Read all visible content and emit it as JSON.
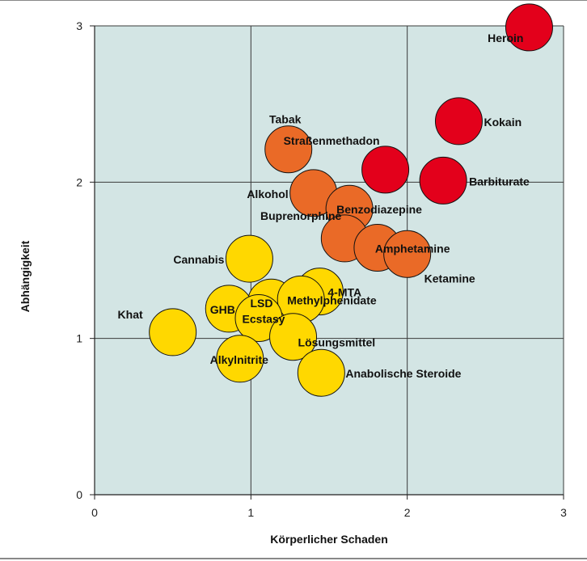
{
  "chart_data": {
    "type": "scatter",
    "title": "",
    "xlabel": "Körperlicher Schaden",
    "ylabel": "Abhängigkeit",
    "xlim": [
      0,
      3
    ],
    "ylim": [
      0,
      3
    ],
    "xticks": [
      "0",
      "1",
      "2",
      "3"
    ],
    "yticks": [
      "0",
      "1",
      "2",
      "3"
    ],
    "grid": true,
    "colors": {
      "plot_bg": "#d3e5e4",
      "red": "#e3001b",
      "orange": "#ea6a27",
      "yellow": "#ffd800",
      "grid": "#3a3a3a"
    },
    "points": [
      {
        "label": "Heroin",
        "x": 2.78,
        "y": 2.99,
        "group": "red"
      },
      {
        "label": "Kokain",
        "x": 2.33,
        "y": 2.39,
        "group": "red"
      },
      {
        "label": "Straßenmethadon",
        "x": 1.86,
        "y": 2.08,
        "group": "red"
      },
      {
        "label": "Barbiturate",
        "x": 2.23,
        "y": 2.01,
        "group": "red"
      },
      {
        "label": "Tabak",
        "x": 1.24,
        "y": 2.21,
        "group": "orange"
      },
      {
        "label": "Alkohol",
        "x": 1.4,
        "y": 1.93,
        "group": "orange"
      },
      {
        "label": "Benzodiazepine",
        "x": 1.63,
        "y": 1.83,
        "group": "orange"
      },
      {
        "label": "Buprenorphine",
        "x": 1.6,
        "y": 1.64,
        "group": "orange"
      },
      {
        "label": "Amphetamine",
        "x": 1.81,
        "y": 1.58,
        "group": "orange"
      },
      {
        "label": "Ketamine",
        "x": 2.0,
        "y": 1.54,
        "group": "orange"
      },
      {
        "label": "Cannabis",
        "x": 0.99,
        "y": 1.51,
        "group": "yellow"
      },
      {
        "label": "4-MTA",
        "x": 1.44,
        "y": 1.3,
        "group": "yellow"
      },
      {
        "label": "LSD",
        "x": 1.13,
        "y": 1.23,
        "group": "yellow"
      },
      {
        "label": "Methylphenidate",
        "x": 1.32,
        "y": 1.25,
        "group": "yellow"
      },
      {
        "label": "GHB",
        "x": 0.86,
        "y": 1.19,
        "group": "yellow"
      },
      {
        "label": "Ecstasy",
        "x": 1.05,
        "y": 1.13,
        "group": "yellow"
      },
      {
        "label": "Lösungsmittel",
        "x": 1.27,
        "y": 1.01,
        "group": "yellow"
      },
      {
        "label": "Khat",
        "x": 0.5,
        "y": 1.04,
        "group": "yellow"
      },
      {
        "label": "Alkylnitrite",
        "x": 0.93,
        "y": 0.87,
        "group": "yellow"
      },
      {
        "label": "Anabolische Steroide",
        "x": 1.45,
        "y": 0.78,
        "group": "yellow"
      }
    ]
  }
}
